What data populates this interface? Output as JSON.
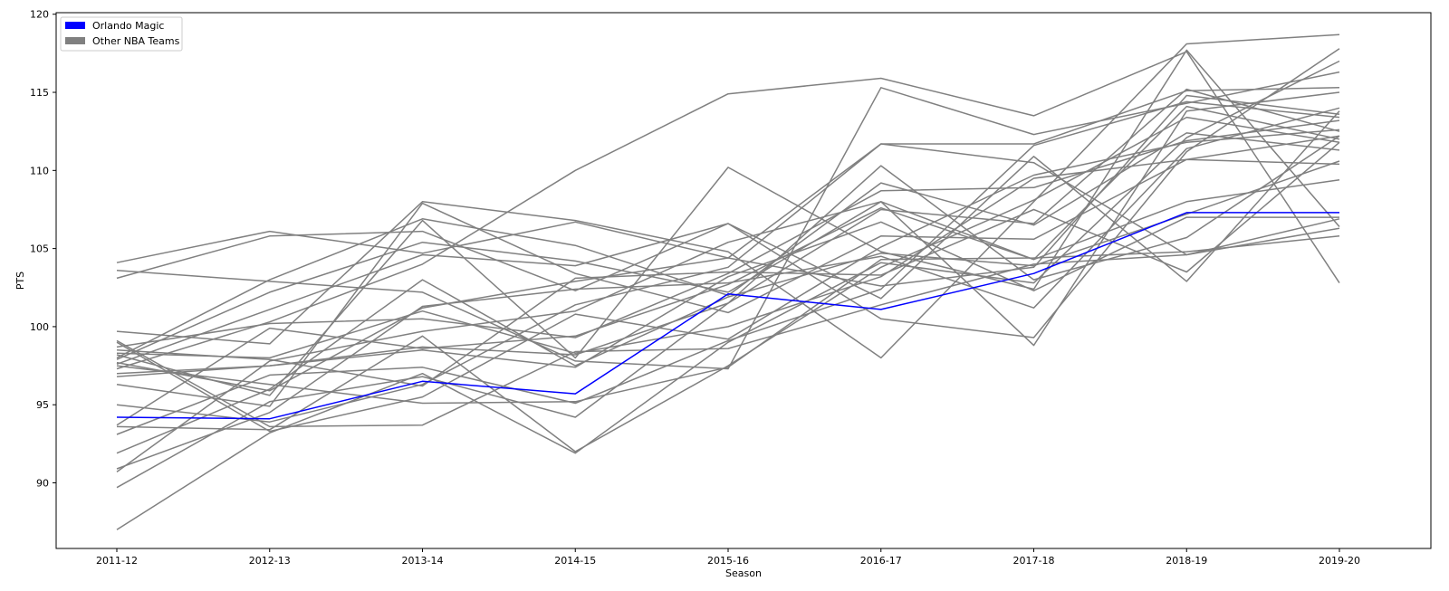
{
  "chart_data": {
    "type": "line",
    "title": "",
    "xlabel": "Season",
    "ylabel": "PTS",
    "categories": [
      "2011-12",
      "2012-13",
      "2013-14",
      "2014-15",
      "2015-16",
      "2016-17",
      "2017-18",
      "2018-19",
      "2019-20"
    ],
    "ylim": [
      85.8,
      120.1
    ],
    "yticks": [
      90,
      95,
      100,
      105,
      110,
      115,
      120
    ],
    "grid": false,
    "legend_position": "top-left",
    "legend": [
      {
        "label": "Orlando Magic",
        "color": "#0000ff"
      },
      {
        "label": "Other NBA Teams",
        "color": "#808080"
      }
    ],
    "highlight_series": {
      "name": "Orlando Magic",
      "color": "#0000ff",
      "values": [
        94.2,
        94.1,
        96.5,
        95.7,
        102.1,
        101.1,
        103.4,
        107.3,
        107.3
      ]
    },
    "other_series_color": "#808080",
    "other_series": [
      {
        "values": [
          104.1,
          106.1,
          104.7,
          106.7,
          104.4,
          111.7,
          111.7,
          115.1,
          115.3
        ]
      },
      {
        "values": [
          103.1,
          105.8,
          106.1,
          102.3,
          106.6,
          100.5,
          99.3,
          111.2,
          117.8
        ]
      },
      {
        "values": [
          103.6,
          102.9,
          102.2,
          97.8,
          97.3,
          115.3,
          112.3,
          114.3,
          116.3
        ]
      },
      {
        "values": [
          99.7,
          98.9,
          108.0,
          106.8,
          104.8,
          98.0,
          108.0,
          118.1,
          118.7
        ]
      },
      {
        "values": [
          98.7,
          100.2,
          100.5,
          99.3,
          103.4,
          108.7,
          108.9,
          111.9,
          113.2
        ]
      },
      {
        "values": [
          98.2,
          95.6,
          106.8,
          98.0,
          110.2,
          104.8,
          102.4,
          117.7,
          106.4
        ]
      },
      {
        "values": [
          97.9,
          102.2,
          105.4,
          104.2,
          102.2,
          108.0,
          104.3,
          114.1,
          112.0
        ]
      },
      {
        "values": [
          97.6,
          101.1,
          104.6,
          103.9,
          106.6,
          101.8,
          110.9,
          102.9,
          113.8
        ]
      },
      {
        "values": [
          97.3,
          100.3,
          104.0,
          110.0,
          114.9,
          115.9,
          113.5,
          117.6,
          102.8
        ]
      },
      {
        "values": [
          97.0,
          97.5,
          98.7,
          98.2,
          101.5,
          107.5,
          106.6,
          115.2,
          112.5
        ]
      },
      {
        "values": [
          98.0,
          103.0,
          106.9,
          105.2,
          102.0,
          109.2,
          106.5,
          112.4,
          111.3
        ]
      },
      {
        "values": [
          96.3,
          94.9,
          107.9,
          103.4,
          100.9,
          105.8,
          105.6,
          110.7,
          110.4
        ]
      },
      {
        "values": [
          95.0,
          93.9,
          96.3,
          101.4,
          103.8,
          111.7,
          110.5,
          104.6,
          106.3
        ]
      },
      {
        "values": [
          93.7,
          99.9,
          98.6,
          99.4,
          102.7,
          107.6,
          104.3,
          108.0,
          109.4
        ]
      },
      {
        "values": [
          93.6,
          93.4,
          99.4,
          92.0,
          97.5,
          103.8,
          108.1,
          113.4,
          111.8
        ]
      },
      {
        "values": [
          93.1,
          96.9,
          97.4,
          95.1,
          99.1,
          102.4,
          111.6,
          114.4,
          113.4
        ]
      },
      {
        "values": [
          91.9,
          96.0,
          103.0,
          97.5,
          101.9,
          104.7,
          103.9,
          107.2,
          110.6
        ]
      },
      {
        "values": [
          90.9,
          94.5,
          101.3,
          102.4,
          102.8,
          104.5,
          101.2,
          111.4,
          114.0
        ]
      },
      {
        "values": [
          90.7,
          97.8,
          99.7,
          101.0,
          105.4,
          108.0,
          98.8,
          113.8,
          115.0
        ]
      },
      {
        "values": [
          89.7,
          95.2,
          96.8,
          94.2,
          101.5,
          110.3,
          103.0,
          105.7,
          112.2
        ]
      },
      {
        "values": [
          87.0,
          93.2,
          97.0,
          91.9,
          99.0,
          104.1,
          102.8,
          112.1,
          117.0
        ]
      },
      {
        "values": [
          99.0,
          93.3,
          95.5,
          100.8,
          99.2,
          105.1,
          109.7,
          111.8,
          112.6
        ]
      },
      {
        "values": [
          98.5,
          97.9,
          96.2,
          103.1,
          103.5,
          103.3,
          107.5,
          103.5,
          111.8
        ]
      },
      {
        "values": [
          97.7,
          95.9,
          101.2,
          102.9,
          104.4,
          102.6,
          103.8,
          114.8,
          113.6
        ]
      },
      {
        "values": [
          99.1,
          93.6,
          93.7,
          98.4,
          98.6,
          101.4,
          104.0,
          104.6,
          106.9
        ]
      },
      {
        "values": [
          97.5,
          96.3,
          95.1,
          95.2,
          97.4,
          104.3,
          104.4,
          104.8,
          105.8
        ]
      },
      {
        "values": [
          96.8,
          97.5,
          98.5,
          97.4,
          103.2,
          106.7,
          102.3,
          107.0,
          107.0
        ]
      },
      {
        "values": [
          98.3,
          98.0,
          101.0,
          98.3,
          100.0,
          103.2,
          109.5,
          110.7,
          112.2
        ]
      }
    ]
  }
}
